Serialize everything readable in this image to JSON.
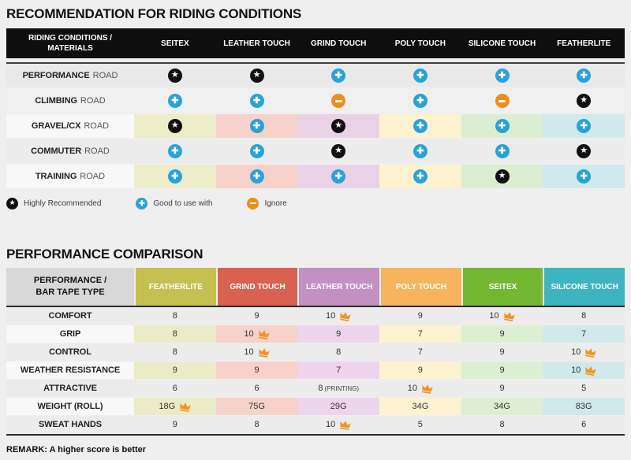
{
  "colors": {
    "page_bg": "#efefef",
    "table_header_bg": "#0e0e0e",
    "plus": "#29a3d7",
    "minus": "#ee8d1e",
    "star": "#111111",
    "crown": "#f29422",
    "default_cell_bg": "#ececec",
    "light_label_bg": "#f8f8f8"
  },
  "riding": {
    "title": "RECOMMENDATION FOR RIDING CONDITIONS",
    "corner_line1": "RIDING CONDITIONS /",
    "corner_line2": "MATERIALS",
    "columns": [
      "SEITEX",
      "LEATHER TOUCH",
      "GRIND TOUCH",
      "POLY TOUCH",
      "SILICONE TOUCH",
      "FEATHERLITE"
    ],
    "tints": [
      "#eeedca",
      "#f6d2ca",
      "#ead2e6",
      "#fdf3d0",
      "#dcedd2",
      "#cfe9ec"
    ],
    "rows": [
      {
        "bold": "PERFORMANCE",
        "rest": "ROAD",
        "bg": "#e9e9e9",
        "tinted": false,
        "cells": [
          "star",
          "star",
          "plus",
          "plus",
          "plus",
          "plus"
        ]
      },
      {
        "bold": "CLIMBING",
        "rest": "ROAD",
        "bg": "#f0f0f1",
        "tinted": false,
        "cells": [
          "plus",
          "plus",
          "minus",
          "plus",
          "minus",
          "star"
        ]
      },
      {
        "bold": "GRAVEL/CX",
        "rest": "ROAD",
        "bg": "#f8f8f8",
        "tinted": true,
        "cells": [
          "star",
          "plus",
          "star",
          "plus",
          "plus",
          "plus"
        ]
      },
      {
        "bold": "COMMUTER",
        "rest": "ROAD",
        "bg": "#ececec",
        "tinted": false,
        "cells": [
          "plus",
          "plus",
          "star",
          "plus",
          "plus",
          "star"
        ]
      },
      {
        "bold": "TRAINING",
        "rest": "ROAD",
        "bg": "#f8f8f8",
        "tinted": true,
        "cells": [
          "plus",
          "plus",
          "plus",
          "plus",
          "star",
          "plus"
        ]
      }
    ],
    "legend": [
      {
        "icon": "star",
        "label": "Highly Recommended"
      },
      {
        "icon": "plus",
        "label": "Good to use with"
      },
      {
        "icon": "minus",
        "label": "Ignore"
      }
    ]
  },
  "performance": {
    "title": "PERFORMANCE COMPARISON",
    "corner_line1": "PERFORMANCE /",
    "corner_line2": "BAR TAPE TYPE",
    "columns": [
      {
        "label": "FEATHERLITE",
        "color": "#c6c051",
        "tint": "#ecebc8"
      },
      {
        "label": "GRIND TOUCH",
        "color": "#d9614f",
        "tint": "#f6d2ca"
      },
      {
        "label": "LEATHER TOUCH",
        "color": "#c48fc3",
        "tint": "#eed5ec"
      },
      {
        "label": "POLY TOUCH",
        "color": "#f6b45d",
        "tint": "#fdf3d0"
      },
      {
        "label": "SEITEX",
        "color": "#73b733",
        "tint": "#dcefd2"
      },
      {
        "label": "SILICONE TOUCH",
        "color": "#3db4c0",
        "tint": "#d0e9eb"
      }
    ],
    "rows": [
      {
        "label": "COMFORT",
        "tinted": false,
        "cells": [
          {
            "v": "8"
          },
          {
            "v": "9"
          },
          {
            "v": "10",
            "crown": true
          },
          {
            "v": "9"
          },
          {
            "v": "10",
            "crown": true
          },
          {
            "v": "8"
          }
        ]
      },
      {
        "label": "GRIP",
        "tinted": true,
        "cells": [
          {
            "v": "8"
          },
          {
            "v": "10",
            "crown": true
          },
          {
            "v": "9"
          },
          {
            "v": "7"
          },
          {
            "v": "9"
          },
          {
            "v": "7"
          }
        ]
      },
      {
        "label": "CONTROL",
        "tinted": false,
        "cells": [
          {
            "v": "8"
          },
          {
            "v": "10",
            "crown": true
          },
          {
            "v": "8"
          },
          {
            "v": "7"
          },
          {
            "v": "9"
          },
          {
            "v": "10",
            "crown": true
          }
        ]
      },
      {
        "label": "WEATHER RESISTANCE",
        "tinted": true,
        "cells": [
          {
            "v": "9"
          },
          {
            "v": "9"
          },
          {
            "v": "7"
          },
          {
            "v": "9"
          },
          {
            "v": "9"
          },
          {
            "v": "10",
            "crown": true
          }
        ]
      },
      {
        "label": "ATTRACTIVE",
        "tinted": false,
        "cells": [
          {
            "v": "6"
          },
          {
            "v": "6"
          },
          {
            "v": "8",
            "suffix": "(PRINTING)"
          },
          {
            "v": "10",
            "crown": true
          },
          {
            "v": "9"
          },
          {
            "v": "5"
          }
        ]
      },
      {
        "label": "WEIGHT (ROLL)",
        "tinted": true,
        "cells": [
          {
            "v": "18G",
            "crown": true
          },
          {
            "v": "75G"
          },
          {
            "v": "29G"
          },
          {
            "v": "34G"
          },
          {
            "v": "34G"
          },
          {
            "v": "83G"
          }
        ]
      },
      {
        "label": "SWEAT HANDS",
        "tinted": false,
        "cells": [
          {
            "v": "9"
          },
          {
            "v": "8"
          },
          {
            "v": "10",
            "crown": true
          },
          {
            "v": "5"
          },
          {
            "v": "8"
          },
          {
            "v": "6"
          }
        ]
      }
    ],
    "remark": "REMARK: A higher score is better"
  }
}
